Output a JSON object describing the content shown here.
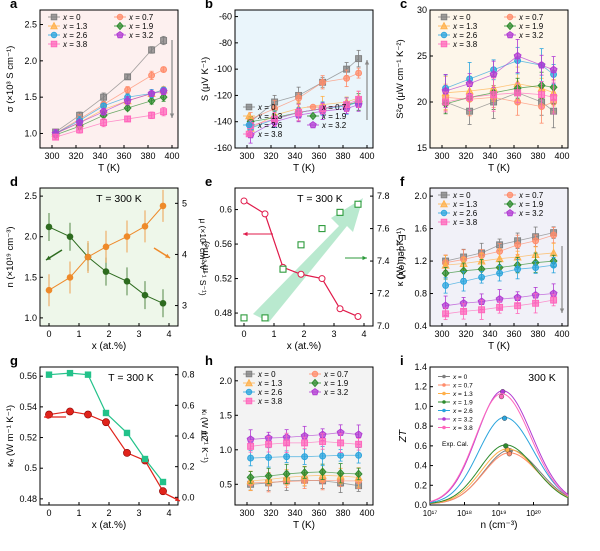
{
  "figure": {
    "panel_letters": [
      "a",
      "b",
      "c",
      "d",
      "e",
      "f",
      "g",
      "h",
      "i"
    ]
  },
  "colors": {
    "x0": "#7f7f7f",
    "x07": "#ff8c6b",
    "x13": "#ffb04a",
    "x19": "#2e8b2e",
    "x26": "#2aa4dd",
    "x32": "#b13bd3",
    "x38": "#ff66bb",
    "green_dark": "#2d6b1f",
    "orange": "#ee8a2a",
    "crimson": "#e01a4a",
    "green_sq": "#2c9a3b",
    "red_ball": "#e0231b",
    "teal_sq": "#23c28a",
    "arrow_grey": "#888888",
    "arrow_green": "#7fd7a8"
  },
  "chart_data": [
    {
      "panel": "a",
      "type": "line",
      "xlabel": "T (K)",
      "ylabel": "σ (×10³ S cm⁻¹)",
      "xlim": [
        290,
        405
      ],
      "ylim": [
        0.8,
        2.7
      ],
      "xticks": [
        300,
        320,
        340,
        360,
        380,
        400
      ],
      "yticks": [
        1.0,
        1.5,
        2.0,
        2.5
      ],
      "x": [
        303,
        323,
        343,
        363,
        383,
        393
      ],
      "series": [
        {
          "name": "x = 0",
          "values": [
            1.02,
            1.25,
            1.5,
            1.78,
            2.15,
            2.28
          ]
        },
        {
          "name": "x = 0.7",
          "values": [
            1.0,
            1.2,
            1.4,
            1.6,
            1.8,
            1.88
          ]
        },
        {
          "name": "x = 1.3",
          "values": [
            1.0,
            1.15,
            1.33,
            1.45,
            1.55,
            1.6
          ]
        },
        {
          "name": "x = 1.9",
          "values": [
            0.98,
            1.1,
            1.25,
            1.35,
            1.45,
            1.5
          ]
        },
        {
          "name": "x = 2.6",
          "values": [
            1.0,
            1.18,
            1.38,
            1.5,
            1.55,
            1.6
          ]
        },
        {
          "name": "x = 3.2",
          "values": [
            1.0,
            1.15,
            1.3,
            1.45,
            1.55,
            1.58
          ]
        },
        {
          "name": "x = 3.8",
          "values": [
            0.95,
            1.05,
            1.15,
            1.2,
            1.25,
            1.3
          ]
        }
      ]
    },
    {
      "panel": "b",
      "type": "line",
      "xlabel": "T (K)",
      "ylabel": "S (μV K⁻¹)",
      "xlim": [
        290,
        405
      ],
      "ylim": [
        -160,
        -55
      ],
      "xticks": [
        300,
        320,
        340,
        360,
        380,
        400
      ],
      "yticks": [
        -160,
        -140,
        -120,
        -100,
        -80,
        -60
      ],
      "x": [
        303,
        323,
        343,
        363,
        383,
        393
      ],
      "series": [
        {
          "name": "x = 0",
          "values": [
            -140,
            -125,
            -120,
            -110,
            -100,
            -92
          ]
        },
        {
          "name": "x = 0.7",
          "values": [
            -138,
            -130,
            -122,
            -110,
            -107,
            -103
          ]
        },
        {
          "name": "x = 1.3",
          "values": [
            -145,
            -135,
            -130,
            -127,
            -125,
            -122
          ]
        },
        {
          "name": "x = 1.9",
          "values": [
            -140,
            -137,
            -133,
            -130,
            -127,
            -125
          ]
        },
        {
          "name": "x = 2.6",
          "values": [
            -145,
            -138,
            -133,
            -130,
            -128,
            -125
          ]
        },
        {
          "name": "x = 3.2",
          "values": [
            -150,
            -140,
            -135,
            -132,
            -130,
            -127
          ]
        },
        {
          "name": "x = 3.8",
          "values": [
            -143,
            -138,
            -133,
            -130,
            -127,
            -123
          ]
        }
      ]
    },
    {
      "panel": "c",
      "type": "line",
      "xlabel": "T (K)",
      "ylabel": "S²σ (μW cm⁻¹ K⁻²)",
      "xlim": [
        290,
        405
      ],
      "ylim": [
        15,
        30
      ],
      "xticks": [
        300,
        320,
        340,
        360,
        380,
        400
      ],
      "yticks": [
        15,
        20,
        25,
        30
      ],
      "x": [
        303,
        323,
        343,
        363,
        383,
        393
      ],
      "series": [
        {
          "name": "x = 0",
          "values": [
            20.0,
            19.0,
            20.0,
            21.0,
            20.0,
            19.0
          ]
        },
        {
          "name": "x = 0.7",
          "values": [
            20.5,
            20.3,
            20.5,
            20.0,
            19.5,
            20.0
          ]
        },
        {
          "name": "x = 1.3",
          "values": [
            21.0,
            21.2,
            21.5,
            22.0,
            21.5,
            21.0
          ]
        },
        {
          "name": "x = 1.9",
          "values": [
            19.8,
            20.5,
            21.0,
            21.5,
            21.8,
            21.6
          ]
        },
        {
          "name": "x = 2.6",
          "values": [
            21.5,
            22.5,
            23.5,
            24.5,
            24.0,
            23.0
          ]
        },
        {
          "name": "x = 3.2",
          "values": [
            21.2,
            22.0,
            23.0,
            25.0,
            24.0,
            23.5
          ]
        },
        {
          "name": "x = 3.8",
          "values": [
            20.0,
            20.5,
            20.8,
            21.0,
            20.8,
            20.5
          ]
        }
      ]
    },
    {
      "panel": "d",
      "type": "line",
      "title": "T = 300 K",
      "xlabel": "x (at.%)",
      "ylabel": "n (×10¹⁹ cm⁻³)",
      "ylabel_right": "μ (×10² cm² V⁻¹ S⁻¹)",
      "xlim": [
        -0.3,
        4.3
      ],
      "ylim": [
        0.9,
        2.6
      ],
      "ylim_right": [
        2.6,
        5.3
      ],
      "xticks": [
        0,
        1,
        2,
        3,
        4
      ],
      "yticks": [
        1.0,
        1.5,
        2.0,
        2.5
      ],
      "yticks_right": [
        3,
        4,
        5
      ],
      "x": [
        0,
        0.7,
        1.3,
        1.9,
        2.6,
        3.2,
        3.8
      ],
      "series": [
        {
          "name": "n",
          "axis": "left",
          "values": [
            2.12,
            2.0,
            1.75,
            1.57,
            1.45,
            1.28,
            1.18
          ]
        },
        {
          "name": "μ",
          "axis": "right",
          "values": [
            3.3,
            3.55,
            3.95,
            4.15,
            4.35,
            4.55,
            4.95
          ]
        }
      ]
    },
    {
      "panel": "e",
      "type": "line",
      "title": "T = 300 K",
      "xlabel": "x (at.%)",
      "ylabel": "m* (mₑ)",
      "ylabel_right": "E_def (eV)",
      "xlim": [
        -0.3,
        4.3
      ],
      "ylim": [
        0.465,
        0.625
      ],
      "ylim_right": [
        7.0,
        7.85
      ],
      "xticks": [
        0,
        1,
        2,
        3,
        4
      ],
      "yticks": [
        0.48,
        0.52,
        0.56,
        0.6
      ],
      "yticks_right": [
        7.0,
        7.2,
        7.4,
        7.6,
        7.8
      ],
      "x": [
        0,
        0.7,
        1.3,
        1.9,
        2.6,
        3.2,
        3.8
      ],
      "series": [
        {
          "name": "m*",
          "axis": "left",
          "values": [
            0.61,
            0.595,
            0.533,
            0.525,
            0.52,
            0.485,
            0.476
          ]
        },
        {
          "name": "E_def",
          "axis": "right",
          "values": [
            7.05,
            7.05,
            7.35,
            7.5,
            7.6,
            7.7,
            7.75
          ]
        }
      ]
    },
    {
      "panel": "f",
      "type": "line",
      "xlabel": "T (K)",
      "ylabel": "κ (W m⁻¹ K⁻¹)",
      "xlim": [
        290,
        405
      ],
      "ylim": [
        0.4,
        2.1
      ],
      "xticks": [
        300,
        320,
        340,
        360,
        380,
        400
      ],
      "yticks": [
        0.4,
        0.8,
        1.2,
        1.6,
        2.0
      ],
      "x": [
        303,
        318,
        333,
        348,
        363,
        378,
        393
      ],
      "series": [
        {
          "name": "x = 0",
          "values": [
            1.2,
            1.25,
            1.3,
            1.4,
            1.45,
            1.5,
            1.55
          ]
        },
        {
          "name": "x = 0.7",
          "values": [
            1.18,
            1.22,
            1.27,
            1.32,
            1.4,
            1.45,
            1.52
          ]
        },
        {
          "name": "x = 1.3",
          "values": [
            1.15,
            1.17,
            1.2,
            1.23,
            1.25,
            1.28,
            1.3
          ]
        },
        {
          "name": "x = 1.9",
          "values": [
            1.05,
            1.08,
            1.1,
            1.12,
            1.15,
            1.18,
            1.2
          ]
        },
        {
          "name": "x = 2.6",
          "values": [
            0.9,
            0.95,
            1.0,
            1.05,
            1.1,
            1.12,
            1.15
          ]
        },
        {
          "name": "x = 3.2",
          "values": [
            0.65,
            0.68,
            0.7,
            0.73,
            0.75,
            0.78,
            0.8
          ]
        },
        {
          "name": "x = 3.8",
          "values": [
            0.55,
            0.58,
            0.6,
            0.63,
            0.65,
            0.68,
            0.72
          ]
        }
      ]
    },
    {
      "panel": "g",
      "type": "line",
      "title": "T = 300 K",
      "xlabel": "x (at.%)",
      "ylabel": "κₑ (W m⁻¹ K⁻¹)",
      "ylabel_right": "κₗ (W m⁻¹ K⁻¹)",
      "xlim": [
        -0.3,
        4.3
      ],
      "ylim": [
        0.476,
        0.566
      ],
      "ylim_right": [
        -0.05,
        0.85
      ],
      "xticks": [
        0,
        1,
        2,
        3,
        4
      ],
      "yticks": [
        0.48,
        0.5,
        0.52,
        0.54,
        0.56
      ],
      "yticks_right": [
        0.0,
        0.2,
        0.4,
        0.6,
        0.8
      ],
      "x": [
        0,
        0.7,
        1.3,
        1.9,
        2.6,
        3.2,
        3.8
      ],
      "series": [
        {
          "name": "κₑ",
          "axis": "left",
          "values": [
            0.535,
            0.537,
            0.535,
            0.53,
            0.51,
            0.505,
            0.485
          ]
        },
        {
          "name": "κₗ",
          "axis": "right",
          "values": [
            0.8,
            0.81,
            0.8,
            0.55,
            0.42,
            0.25,
            0.1
          ]
        }
      ]
    },
    {
      "panel": "h",
      "type": "line",
      "xlabel": "T (K)",
      "ylabel": "ZT",
      "xlim": [
        290,
        405
      ],
      "ylim": [
        0.2,
        2.2
      ],
      "xticks": [
        300,
        320,
        340,
        360,
        380,
        400
      ],
      "yticks": [
        0.5,
        1.0,
        1.5,
        2.0
      ],
      "x": [
        303,
        318,
        333,
        348,
        363,
        378,
        393
      ],
      "series": [
        {
          "name": "x = 0",
          "values": [
            0.5,
            0.52,
            0.55,
            0.56,
            0.55,
            0.52,
            0.48
          ]
        },
        {
          "name": "x = 0.7",
          "values": [
            0.52,
            0.53,
            0.54,
            0.55,
            0.56,
            0.55,
            0.55
          ]
        },
        {
          "name": "x = 1.3",
          "values": [
            0.55,
            0.57,
            0.6,
            0.62,
            0.63,
            0.62,
            0.6
          ]
        },
        {
          "name": "x = 1.9",
          "values": [
            0.6,
            0.62,
            0.65,
            0.67,
            0.68,
            0.66,
            0.65
          ]
        },
        {
          "name": "x = 2.6",
          "values": [
            0.88,
            0.89,
            0.9,
            0.9,
            0.91,
            0.92,
            0.92
          ]
        },
        {
          "name": "x = 3.2",
          "values": [
            1.15,
            1.17,
            1.18,
            1.2,
            1.22,
            1.25,
            1.22
          ]
        },
        {
          "name": "x = 3.8",
          "values": [
            1.05,
            1.08,
            1.1,
            1.1,
            1.12,
            1.1,
            1.08
          ]
        }
      ]
    },
    {
      "panel": "i",
      "type": "line",
      "title": "300 K",
      "xlabel": "n (cm⁻³)",
      "ylabel": "ZT",
      "xscale": "log",
      "xlim": [
        1e+17,
        1e+21
      ],
      "ylim": [
        0.0,
        1.4
      ],
      "xticks_labels": [
        "10¹⁷",
        "10¹⁸",
        "10¹⁹",
        "10²⁰"
      ],
      "yticks": [
        0.0,
        0.2,
        0.4,
        0.6,
        0.8,
        1.0,
        1.2,
        1.4
      ],
      "legend_caption": "Exp.  Cal.",
      "series": [
        {
          "name": "x = 0",
          "peak": 0.55,
          "n_exp": 2.1e+19,
          "zt_exp": 0.55
        },
        {
          "name": "x = 0.7",
          "peak": 0.52,
          "n_exp": 2e+19,
          "zt_exp": 0.52
        },
        {
          "name": "x = 1.3",
          "peak": 0.56,
          "n_exp": 1.75e+19,
          "zt_exp": 0.56
        },
        {
          "name": "x = 1.9",
          "peak": 0.6,
          "n_exp": 1.57e+19,
          "zt_exp": 0.6
        },
        {
          "name": "x = 2.6",
          "peak": 0.88,
          "n_exp": 1.45e+19,
          "zt_exp": 0.88
        },
        {
          "name": "x = 3.2",
          "peak": 1.15,
          "n_exp": 1.28e+19,
          "zt_exp": 1.15
        },
        {
          "name": "x = 3.8",
          "peak": 1.12,
          "n_exp": 1.18e+19,
          "zt_exp": 1.1
        }
      ]
    }
  ]
}
